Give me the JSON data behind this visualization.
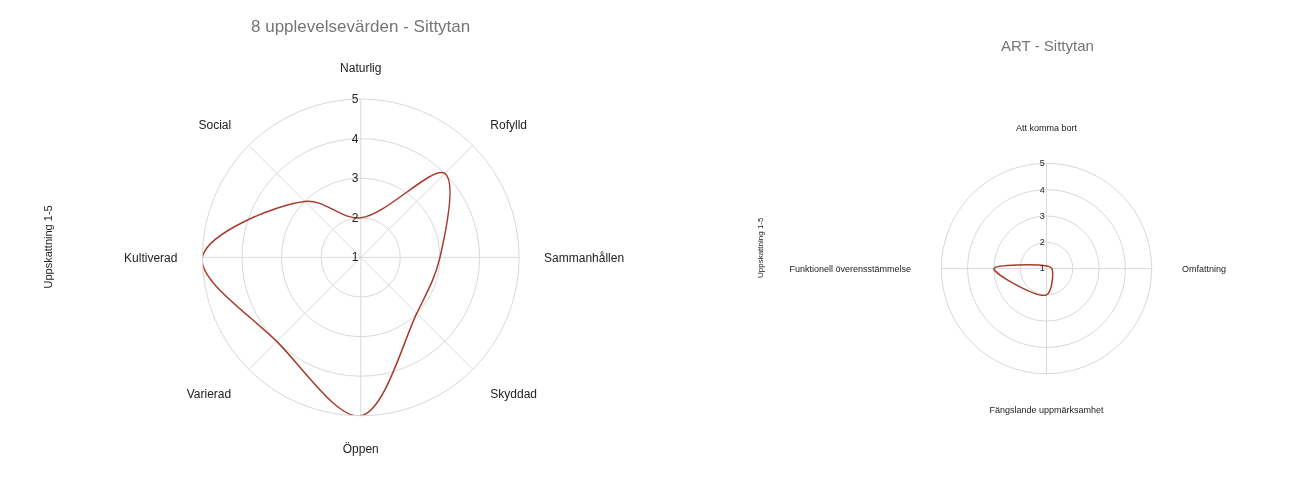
{
  "chart_data": [
    {
      "type": "radar",
      "title": "8 upplevelsevärden - Sittytan",
      "ylabel": "Uppskattning 1-5",
      "categories": [
        "Naturlig",
        "Rofylld",
        "Sammanhållen",
        "Skyddad",
        "Öppen",
        "Varierad",
        "Kultiverad",
        "Social"
      ],
      "series": [
        {
          "color": "#a83a2a",
          "values": [
            2,
            4,
            3,
            3,
            5,
            4,
            5,
            3
          ]
        }
      ],
      "ylim": [
        1,
        5
      ],
      "yticks": [
        1,
        2,
        3,
        4,
        5
      ],
      "grid": true,
      "marker": "none"
    },
    {
      "type": "radar",
      "title": "ART - Sittytan",
      "ylabel": "Uppskattning 1-5",
      "categories": [
        "Att komma bort",
        "Omfattning",
        "Fängslande uppmärksamhet",
        "Funktionell överensstämmelse"
      ],
      "series": [
        {
          "color": "#a83a2a",
          "values": [
            1.1,
            1.2,
            2,
            3
          ]
        }
      ],
      "ylim": [
        1,
        5
      ],
      "yticks": [
        1,
        2,
        3,
        4,
        5
      ],
      "grid": true,
      "marker": "none"
    }
  ]
}
